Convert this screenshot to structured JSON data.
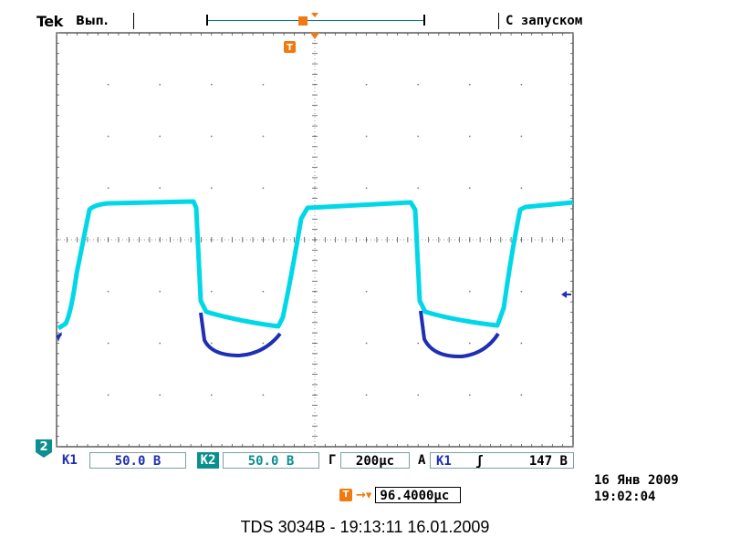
{
  "header": {
    "brand": "Tek",
    "run_state": "Вып.",
    "trigger_mode": "С запуском"
  },
  "channels": {
    "ch2_badge": "2",
    "k1_label": "K1",
    "k1_scale": "50.0 В",
    "k2_label": "K2",
    "k2_scale": "50.0 В"
  },
  "timebase": {
    "label": "Г",
    "value": "200μс"
  },
  "trigger": {
    "mode_letter": "А",
    "source": "K1",
    "slope_symbol": "ʃ",
    "level": "147 В",
    "marker": "T",
    "position_value": "96.4000μс"
  },
  "datetime": {
    "date": "16 Янв 2009",
    "time": "19:02:04"
  },
  "footer": {
    "title": "TDS 3034B - 19:13:11   16.01.2009"
  },
  "colors": {
    "ch1": "#1f2fb4",
    "ch2": "#00d8e8",
    "trigger": "#f07a10",
    "graticule": "#555555"
  },
  "icons": {
    "trigger_marker": "trigger-t-icon",
    "ch_level_marker": "left-arrow-icon"
  }
}
